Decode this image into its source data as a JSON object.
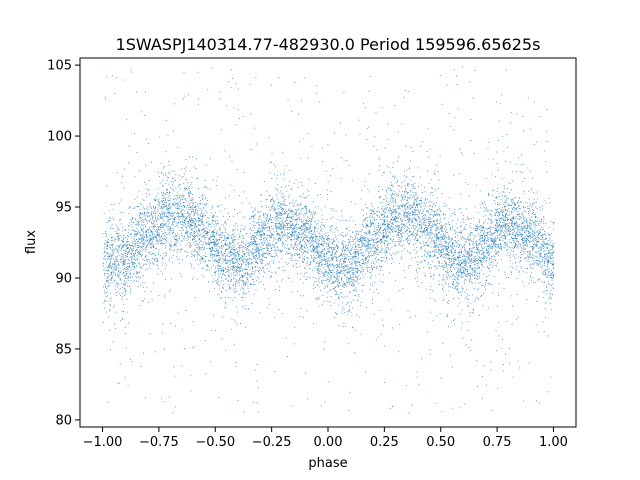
{
  "chart_data": {
    "type": "scatter",
    "title": "1SWASPJ140314.77-482930.0 Period 159596.65625s",
    "xlabel": "phase",
    "ylabel": "flux",
    "xlim": [
      -1.1,
      1.1
    ],
    "ylim": [
      79.5,
      105.5
    ],
    "xticks": [
      -1.0,
      -0.75,
      -0.5,
      -0.25,
      0.0,
      0.25,
      0.5,
      0.75,
      1.0
    ],
    "xtick_labels": [
      "−1.00",
      "−0.75",
      "−0.50",
      "−0.25",
      "0.00",
      "0.25",
      "0.50",
      "0.75",
      "1.00"
    ],
    "yticks": [
      80,
      85,
      90,
      95,
      100,
      105
    ],
    "ytick_labels": [
      "80",
      "85",
      "90",
      "95",
      "100",
      "105"
    ],
    "grid": false,
    "marker_color": "#1f77b4",
    "series": [
      {
        "phase_range": [
          -1.0,
          1.0
        ],
        "trend": [
          {
            "x": -1.0,
            "y": 90.8
          },
          {
            "x": -0.9,
            "y": 91.6
          },
          {
            "x": -0.8,
            "y": 93.2
          },
          {
            "x": -0.7,
            "y": 94.4
          },
          {
            "x": -0.65,
            "y": 94.6
          },
          {
            "x": -0.55,
            "y": 93.4
          },
          {
            "x": -0.45,
            "y": 91.4
          },
          {
            "x": -0.38,
            "y": 91.0
          },
          {
            "x": -0.3,
            "y": 92.6
          },
          {
            "x": -0.2,
            "y": 94.0
          },
          {
            "x": -0.1,
            "y": 93.0
          },
          {
            "x": 0.0,
            "y": 91.2
          },
          {
            "x": 0.05,
            "y": 90.6
          },
          {
            "x": 0.1,
            "y": 90.9
          },
          {
            "x": 0.2,
            "y": 92.8
          },
          {
            "x": 0.3,
            "y": 94.4
          },
          {
            "x": 0.35,
            "y": 94.6
          },
          {
            "x": 0.45,
            "y": 93.4
          },
          {
            "x": 0.55,
            "y": 91.4
          },
          {
            "x": 0.62,
            "y": 91.0
          },
          {
            "x": 0.7,
            "y": 92.6
          },
          {
            "x": 0.8,
            "y": 94.0
          },
          {
            "x": 0.9,
            "y": 93.0
          },
          {
            "x": 1.0,
            "y": 91.0
          }
        ],
        "scatter_sigma": 1.3,
        "outlier_range": [
          80.5,
          105
        ]
      }
    ]
  }
}
